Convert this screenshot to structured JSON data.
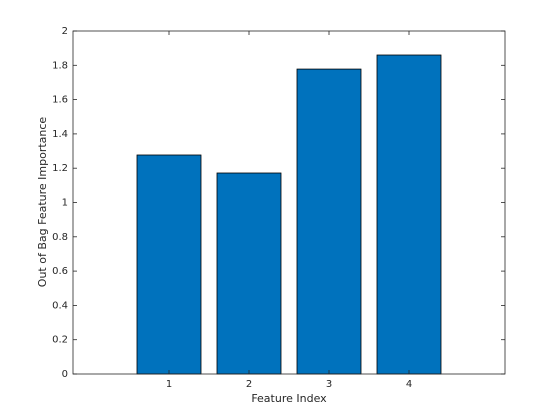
{
  "chart_data": {
    "type": "bar",
    "xlabel": "Feature Index",
    "ylabel": "Out of Bag Feature Importance",
    "x": [
      1,
      2,
      3,
      4
    ],
    "values": [
      1.277,
      1.172,
      1.778,
      1.86
    ],
    "color": "#0072bd",
    "xlim": [
      -0.2,
      5.2
    ],
    "xticks": [
      1,
      2,
      3,
      4
    ],
    "ylim": [
      0,
      2
    ],
    "yticks": [
      0,
      0.2,
      0.4,
      0.6,
      0.8,
      1,
      1.2,
      1.4,
      1.6,
      1.8,
      2
    ]
  }
}
